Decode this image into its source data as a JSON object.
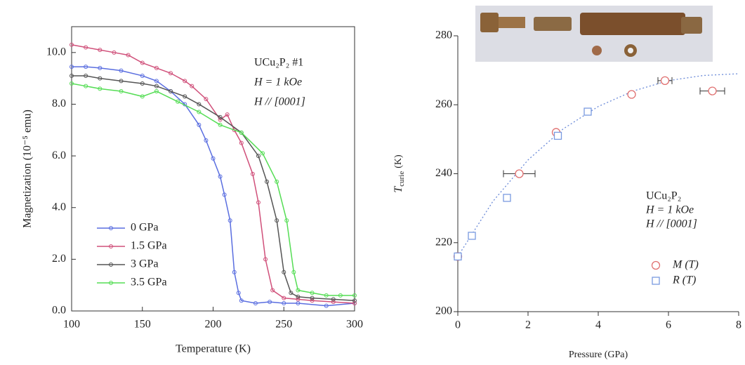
{
  "chart_data": [
    {
      "type": "line",
      "xlabel": "Temperature (K)",
      "ylabel": "Magnetization (10⁻⁵ emu)",
      "annotations": [
        "UCu₂P₂ #1",
        "H = 1 kOe",
        "H // [0001]"
      ],
      "xlim": [
        100,
        300
      ],
      "xticks": [
        100,
        150,
        200,
        250,
        300
      ],
      "ylim": [
        0,
        11
      ],
      "yticks": [
        {
          "value": 0,
          "label": "0.0"
        },
        {
          "value": 2,
          "label": "2.0"
        },
        {
          "value": 4,
          "label": "4.0"
        },
        {
          "value": 6,
          "label": "6.0"
        },
        {
          "value": 8,
          "label": "8.0"
        },
        {
          "value": 10,
          "label": "10.0"
        }
      ],
      "legend": "lower left",
      "series": [
        {
          "name": "0 GPa",
          "color": "#5a6ee0",
          "x": [
            100,
            110,
            120,
            135,
            150,
            160,
            170,
            180,
            190,
            195,
            200,
            205,
            208,
            212,
            215,
            218,
            220,
            230,
            240,
            250,
            260,
            280,
            300
          ],
          "values": [
            9.45,
            9.45,
            9.4,
            9.3,
            9.1,
            8.9,
            8.5,
            8.0,
            7.2,
            6.6,
            5.9,
            5.2,
            4.5,
            3.5,
            1.5,
            0.7,
            0.4,
            0.3,
            0.35,
            0.3,
            0.3,
            0.2,
            0.3
          ]
        },
        {
          "name": "1.5 GPa",
          "color": "#d0507a",
          "x": [
            100,
            110,
            120,
            130,
            140,
            150,
            160,
            170,
            180,
            185,
            195,
            205,
            210,
            215,
            220,
            228,
            232,
            237,
            242,
            250,
            260,
            270,
            285,
            300
          ],
          "values": [
            10.3,
            10.2,
            10.1,
            10.0,
            9.9,
            9.6,
            9.4,
            9.2,
            8.9,
            8.7,
            8.2,
            7.4,
            7.6,
            7.0,
            6.5,
            5.3,
            4.2,
            2.0,
            0.8,
            0.5,
            0.45,
            0.4,
            0.35,
            0.3
          ]
        },
        {
          "name": "3 GPa",
          "color": "#555555",
          "x": [
            100,
            110,
            120,
            135,
            150,
            160,
            170,
            180,
            190,
            205,
            220,
            232,
            238,
            245,
            250,
            255,
            260,
            270,
            285,
            300
          ],
          "values": [
            9.1,
            9.1,
            9.0,
            8.9,
            8.8,
            8.7,
            8.5,
            8.3,
            8.0,
            7.5,
            6.9,
            6.0,
            5.0,
            3.5,
            1.5,
            0.7,
            0.55,
            0.5,
            0.45,
            0.4
          ]
        },
        {
          "name": "3.5 GPa",
          "color": "#55dd55",
          "x": [
            100,
            110,
            120,
            135,
            150,
            160,
            175,
            190,
            205,
            220,
            235,
            245,
            252,
            257,
            260,
            270,
            280,
            290,
            300
          ],
          "values": [
            8.8,
            8.7,
            8.6,
            8.5,
            8.3,
            8.5,
            8.1,
            7.7,
            7.2,
            6.9,
            6.1,
            5.0,
            3.5,
            1.5,
            0.8,
            0.7,
            0.6,
            0.6,
            0.6
          ]
        }
      ]
    },
    {
      "type": "scatter",
      "xlabel": "Pressure (GPa)",
      "ylabel": "T",
      "ylabel_sub": "curie",
      "ylabel_unit": "(K)",
      "annotations": [
        "UCu₂P₂",
        "H = 1 kOe",
        "H // [0001]"
      ],
      "xlim": [
        0,
        8
      ],
      "xticks": [
        0,
        2,
        4,
        6,
        8
      ],
      "ylim": [
        200,
        280
      ],
      "yticks": [
        200,
        220,
        240,
        260,
        280
      ],
      "legend": "lower right",
      "series": [
        {
          "name": "M (T)",
          "color": "#e07070",
          "marker": "circle",
          "x": [
            0,
            1.75,
            2.8,
            4.95,
            5.9,
            7.25
          ],
          "values": [
            216,
            240,
            252,
            263,
            267,
            264
          ],
          "xerr": [
            null,
            0.45,
            null,
            null,
            0.2,
            0.35
          ]
        },
        {
          "name": "R (T)",
          "color": "#7a9ae0",
          "marker": "square",
          "x": [
            0,
            0.4,
            1.4,
            2.85,
            3.7
          ],
          "values": [
            216,
            222,
            233,
            251,
            258
          ]
        }
      ],
      "fit": {
        "color": "#6a8ad8",
        "x": [
          0,
          1,
          2,
          3,
          4,
          5,
          6,
          7,
          8
        ],
        "values": [
          216,
          232,
          244,
          253,
          259.5,
          264,
          267,
          268.5,
          269
        ]
      }
    }
  ]
}
